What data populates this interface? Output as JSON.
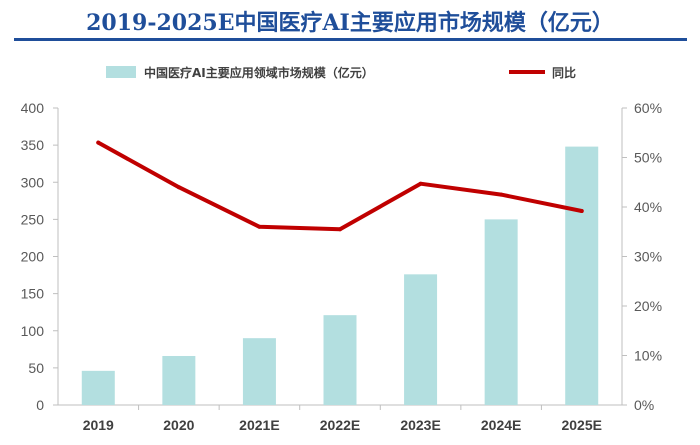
{
  "chart_data": {
    "type": "bar",
    "title": "2019-2025E中国医疗AI主要应用市场规模（亿元）",
    "categories": [
      "2019",
      "2020",
      "2021E",
      "2022E",
      "2023E",
      "2024E",
      "2025E"
    ],
    "series": [
      {
        "name": "中国医疗AI主要应用领域市场规模（亿元）",
        "type": "bar",
        "axis": "left",
        "color": "#b3dfe0",
        "values": [
          46,
          66,
          90,
          121,
          176,
          250,
          348
        ]
      },
      {
        "name": "同比",
        "type": "line",
        "axis": "right",
        "color": "#c00000",
        "values": [
          0.53,
          0.44,
          0.36,
          0.355,
          0.447,
          0.425,
          0.392
        ]
      }
    ],
    "y_left": {
      "min": 0,
      "max": 400,
      "ticks": [
        "0",
        "50",
        "100",
        "150",
        "200",
        "250",
        "300",
        "350",
        "400"
      ]
    },
    "y_right": {
      "min": 0,
      "max": 0.6,
      "ticks": [
        "0%",
        "10%",
        "20%",
        "30%",
        "40%",
        "50%",
        "60%"
      ]
    },
    "legend_position": "top",
    "grid": false
  }
}
